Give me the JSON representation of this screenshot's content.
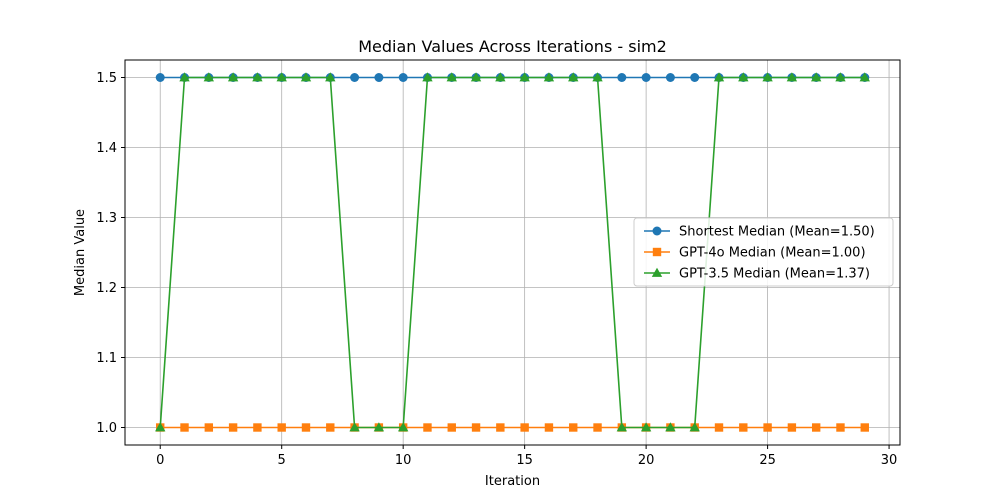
{
  "chart_data": {
    "type": "line",
    "title": "Median Values Across Iterations - sim2",
    "xlabel": "Iteration",
    "ylabel": "Median Value",
    "xlim": [
      -1.45,
      30.45
    ],
    "ylim": [
      0.975,
      1.525
    ],
    "xticks": [
      0,
      5,
      10,
      15,
      20,
      25,
      30
    ],
    "xtick_labels": [
      "0",
      "5",
      "10",
      "15",
      "20",
      "25",
      "30"
    ],
    "yticks": [
      1.0,
      1.1,
      1.2,
      1.3,
      1.4,
      1.5
    ],
    "ytick_labels": [
      "1.0",
      "1.1",
      "1.2",
      "1.3",
      "1.4",
      "1.5"
    ],
    "grid": true,
    "legend_position": "center-right",
    "x": [
      0,
      1,
      2,
      3,
      4,
      5,
      6,
      7,
      8,
      9,
      10,
      11,
      12,
      13,
      14,
      15,
      16,
      17,
      18,
      19,
      20,
      21,
      22,
      23,
      24,
      25,
      26,
      27,
      28,
      29
    ],
    "series": [
      {
        "name": "Shortest Median (Mean=1.50)",
        "color": "#1f77b4",
        "marker": "circle",
        "values": [
          1.5,
          1.5,
          1.5,
          1.5,
          1.5,
          1.5,
          1.5,
          1.5,
          1.5,
          1.5,
          1.5,
          1.5,
          1.5,
          1.5,
          1.5,
          1.5,
          1.5,
          1.5,
          1.5,
          1.5,
          1.5,
          1.5,
          1.5,
          1.5,
          1.5,
          1.5,
          1.5,
          1.5,
          1.5,
          1.5
        ]
      },
      {
        "name": "GPT-4o Median (Mean=1.00)",
        "color": "#ff7f0e",
        "marker": "square",
        "values": [
          1.0,
          1.0,
          1.0,
          1.0,
          1.0,
          1.0,
          1.0,
          1.0,
          1.0,
          1.0,
          1.0,
          1.0,
          1.0,
          1.0,
          1.0,
          1.0,
          1.0,
          1.0,
          1.0,
          1.0,
          1.0,
          1.0,
          1.0,
          1.0,
          1.0,
          1.0,
          1.0,
          1.0,
          1.0,
          1.0
        ]
      },
      {
        "name": "GPT-3.5 Median (Mean=1.37)",
        "color": "#2ca02c",
        "marker": "triangle",
        "values": [
          1.0,
          1.5,
          1.5,
          1.5,
          1.5,
          1.5,
          1.5,
          1.5,
          1.0,
          1.0,
          1.0,
          1.5,
          1.5,
          1.5,
          1.5,
          1.5,
          1.5,
          1.5,
          1.5,
          1.0,
          1.0,
          1.0,
          1.0,
          1.5,
          1.5,
          1.5,
          1.5,
          1.5,
          1.5,
          1.5
        ]
      }
    ]
  }
}
